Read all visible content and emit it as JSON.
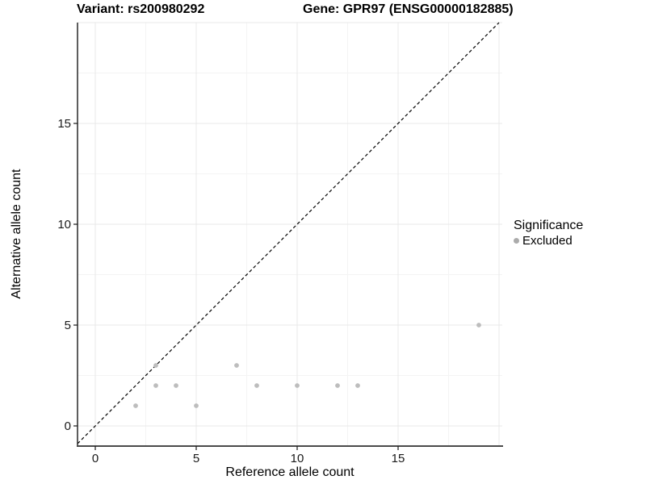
{
  "titles": {
    "variant": "Variant: rs200980292",
    "gene": "Gene: GPR97 (ENSG00000182885)"
  },
  "chart_data": {
    "type": "scatter",
    "xlabel": "Reference allele count",
    "ylabel": "Alternative allele count",
    "xlim": [
      -0.9,
      20.2
    ],
    "ylim": [
      -1.0,
      20.0
    ],
    "x_ticks": [
      0,
      5,
      10,
      15
    ],
    "y_ticks": [
      0,
      5,
      10,
      15
    ],
    "grid": {
      "major": [
        0,
        5,
        10,
        15,
        20
      ],
      "minor": [
        2.5,
        7.5,
        12.5,
        17.5
      ],
      "major_color": "#e8e8e8",
      "minor_color": "#f4f4f4"
    },
    "identity_line": {
      "equation": "y = x",
      "style": "dashed",
      "color": "#000000",
      "x1": -0.88,
      "y1": -0.88,
      "x2": 20.0,
      "y2": 20.0
    },
    "series": [
      {
        "name": "Excluded",
        "color": "#bdbdbd",
        "points": [
          [
            2,
            1
          ],
          [
            3,
            2
          ],
          [
            3,
            3
          ],
          [
            4,
            2
          ],
          [
            5,
            1
          ],
          [
            7,
            3
          ],
          [
            8,
            2
          ],
          [
            10,
            2
          ],
          [
            12,
            2
          ],
          [
            13,
            2
          ],
          [
            19,
            5
          ]
        ]
      }
    ],
    "legend": {
      "title": "Significance",
      "position": "right",
      "items": [
        {
          "label": "Excluded",
          "color": "#ababab"
        }
      ]
    },
    "axis_color": "#1a1a1a",
    "bottom_axis_color": "#4a4a4a",
    "tick_label_color": "#1a1a1a"
  }
}
